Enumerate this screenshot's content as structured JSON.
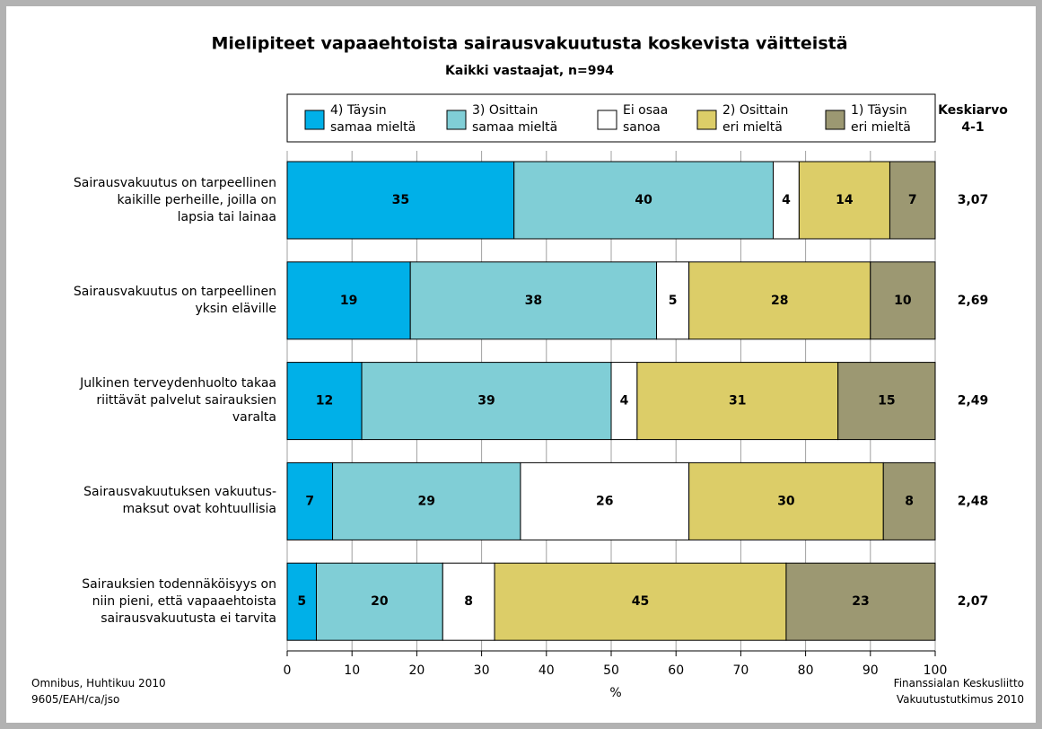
{
  "chart_data": {
    "type": "stacked_barh",
    "title": "Mielipiteet vapaaehtoista sairausvakuutusta koskevista väitteistä",
    "subtitle": "Kaikki vastaajat, n=994",
    "categories": [
      "Sairausvakuutus on tarpeellinen\nkaikille perheille, joilla on\nlapsia tai lainaa",
      "Sairausvakuutus on tarpeellinen\nyksin eläville",
      "Julkinen terveydenhuolto takaa\nriittävät palvelut sairauksien\nvaralta",
      "Sairausvakuutuksen vakuutus-\nmaksut ovat kohtuullisia",
      "Sairauksien todennäköisyys on\nniin pieni, että vapaaehtoista\nsairausvakuutusta ei tarvita"
    ],
    "series": [
      {
        "name": "4) Täysin\nsamaa mieltä",
        "color": "#00b0e8",
        "values": [
          35,
          19,
          11.5,
          7,
          4.5
        ],
        "value_labels": [
          "35",
          "19",
          "12",
          "7",
          "5"
        ]
      },
      {
        "name": "3) Osittain\nsamaa mieltä",
        "color": "#80ced6",
        "values": [
          40,
          38,
          38.5,
          29,
          19.5
        ],
        "value_labels": [
          "40",
          "38",
          "39",
          "29",
          "20"
        ]
      },
      {
        "name": "Ei osaa\nsanoa",
        "color": "#ffffff",
        "values": [
          4,
          5,
          4,
          26,
          8
        ]
      },
      {
        "name": "2) Osittain\neri mieltä",
        "color": "#dccd68",
        "values": [
          14,
          28,
          31,
          30,
          45
        ]
      },
      {
        "name": "1) Täysin\neri mieltä",
        "color": "#9c9872",
        "values": [
          7,
          10,
          15,
          8,
          23
        ]
      }
    ],
    "means": {
      "title": "Keskiarvo\n4-1",
      "values": [
        3.07,
        2.69,
        2.49,
        2.48,
        2.07
      ],
      "value_labels": [
        "3,07",
        "2,69",
        "2,49",
        "2,48",
        "2,07"
      ]
    },
    "xlabel": "%",
    "xlim": [
      0,
      100
    ],
    "xticks": [
      0,
      10,
      20,
      30,
      40,
      50,
      60,
      70,
      80,
      90,
      100
    ],
    "grid": true,
    "legend": "top",
    "note_left": "Omnibus, Huhtikuu 2010\n9605/EAH/ca/jso",
    "note_right": "Finanssialan Keskusliitto\nVakuutustutkimus 2010"
  }
}
